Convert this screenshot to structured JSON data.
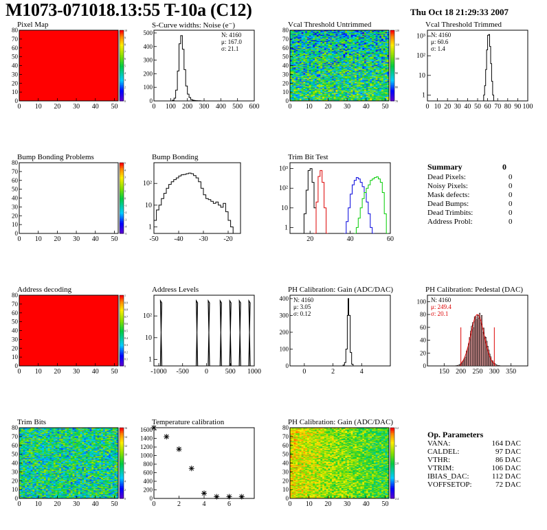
{
  "header": {
    "title": "M1073-071018.13:55 T-10a (C12)",
    "date": "Thu Oct 18 21:29:33 2007"
  },
  "panels": [
    {
      "id": "p1",
      "title": "Pixel Map",
      "type": "heatmap",
      "fill": "uniform",
      "color": "#ff0000",
      "xlim": [
        0,
        52
      ],
      "ylim": [
        0,
        80
      ],
      "xticks": [
        0,
        10,
        20,
        30,
        40,
        50
      ],
      "yticks": [
        0,
        10,
        20,
        30,
        40,
        50,
        60,
        70,
        80
      ],
      "zscale": {
        "ticks": [
          "10",
          "9",
          "8",
          "7",
          "6",
          "5",
          "4",
          "3",
          "2",
          "1",
          "0"
        ]
      }
    },
    {
      "id": "p2",
      "title": "S-Curve widths: Noise (e⁻)",
      "type": "line",
      "xlim": [
        0,
        600
      ],
      "ylim": [
        0,
        520
      ],
      "xticks": [
        0,
        100,
        200,
        300,
        400,
        500,
        600
      ],
      "yticks": [
        0,
        100,
        200,
        300,
        400,
        500
      ],
      "stats": [
        "N: 4160",
        "μ: 167.0",
        "σ: 21.1"
      ],
      "series": [
        {
          "x": [
            100,
            110,
            120,
            130,
            140,
            150,
            160,
            170,
            180,
            190,
            200,
            210,
            220,
            230,
            240,
            250,
            260,
            280,
            300
          ],
          "y": [
            0,
            5,
            20,
            80,
            220,
            420,
            480,
            380,
            230,
            110,
            50,
            25,
            10,
            5,
            3,
            2,
            1,
            0,
            0
          ]
        }
      ]
    },
    {
      "id": "p3",
      "title": "Vcal Threshold Untrimmed",
      "type": "heatmap",
      "fill": "noise-bgy",
      "xlim": [
        0,
        52
      ],
      "ylim": [
        0,
        80
      ],
      "xticks": [
        0,
        10,
        20,
        30,
        40,
        50
      ],
      "yticks": [
        0,
        10,
        20,
        30,
        40,
        50,
        60,
        70,
        80
      ],
      "zscale": {
        "ticks": [
          "120",
          "110",
          "100",
          "90",
          "80",
          "70"
        ]
      }
    },
    {
      "id": "p4",
      "title": "Vcal Threshold Trimmed",
      "type": "line",
      "log": true,
      "xlim": [
        0,
        100
      ],
      "ylim": [
        0.5,
        2000
      ],
      "xticks": [
        0,
        10,
        20,
        30,
        40,
        50,
        60,
        70,
        80,
        90,
        100
      ],
      "yticklabels": [
        "1",
        "10",
        "10²",
        "10³"
      ],
      "stats": [
        "N: 4160",
        "μ: 60.6",
        "σ:  1.4"
      ],
      "series": [
        {
          "x": [
            55,
            56,
            57,
            58,
            59,
            60,
            61,
            62,
            63,
            64,
            65,
            66,
            67
          ],
          "y": [
            0.5,
            1,
            3,
            20,
            200,
            1100,
            1200,
            300,
            40,
            5,
            1,
            0.5,
            0.5
          ]
        }
      ]
    },
    {
      "id": "p5",
      "title": "Bump Bonding Problems",
      "type": "heatmap",
      "fill": "empty",
      "xlim": [
        0,
        52
      ],
      "ylim": [
        0,
        80
      ],
      "xticks": [
        0,
        10,
        20,
        30,
        40,
        50
      ],
      "yticks": [
        0,
        10,
        20,
        30,
        40,
        50,
        60,
        70,
        80
      ],
      "zscale": {
        "ticks": [
          "5",
          "4",
          "3",
          "2",
          "1",
          "0",
          "-1",
          "-2",
          "-3",
          "-4",
          "-5"
        ]
      }
    },
    {
      "id": "p6",
      "title": "Bump Bonding",
      "type": "line",
      "log": true,
      "xlim": [
        -50,
        -15
      ],
      "ylim": [
        0.5,
        900
      ],
      "xticks": [
        -50,
        -40,
        -30,
        -20
      ],
      "yticklabels": [
        "1",
        "10",
        "10²"
      ],
      "series": [
        {
          "x": [
            -50,
            -49,
            -48,
            -47,
            -46,
            -45,
            -44,
            -43,
            -42,
            -41,
            -40,
            -39,
            -38,
            -37,
            -36,
            -35,
            -34,
            -33,
            -32,
            -31,
            -30,
            -29,
            -28,
            -27,
            -26,
            -25,
            -24,
            -23,
            -22,
            -21,
            -20,
            -19,
            -18
          ],
          "y": [
            2,
            6,
            10,
            20,
            35,
            60,
            90,
            120,
            150,
            180,
            220,
            250,
            260,
            280,
            300,
            280,
            230,
            180,
            120,
            60,
            30,
            20,
            18,
            15,
            12,
            14,
            10,
            8,
            12,
            5,
            2,
            1,
            0.5
          ]
        }
      ]
    },
    {
      "id": "p7",
      "title": "Trim Bit Test",
      "type": "line",
      "log": true,
      "xlim": [
        10,
        60
      ],
      "ylim": [
        0.5,
        2000
      ],
      "xticks": [
        20,
        40,
        60
      ],
      "yticklabels": [
        "1",
        "10",
        "10²",
        "10³"
      ],
      "series": [
        {
          "name": "black",
          "color": "#000000",
          "x": [
            16,
            17,
            18,
            19,
            20,
            21,
            22,
            23
          ],
          "y": [
            0.5,
            5,
            80,
            800,
            1000,
            200,
            10,
            0.5
          ]
        },
        {
          "name": "red",
          "color": "#dd0000",
          "x": [
            22,
            23,
            24,
            25,
            26,
            27,
            28
          ],
          "y": [
            0.5,
            20,
            400,
            800,
            200,
            10,
            0.5
          ]
        },
        {
          "name": "blue",
          "color": "#0000dd",
          "x": [
            37,
            38,
            39,
            40,
            41,
            42,
            43,
            44,
            45,
            46,
            47,
            48,
            49,
            50,
            51
          ],
          "y": [
            0.5,
            2,
            10,
            50,
            150,
            250,
            350,
            300,
            200,
            120,
            60,
            20,
            5,
            1,
            0.5
          ]
        },
        {
          "name": "green",
          "color": "#00cc00",
          "x": [
            42,
            43,
            44,
            45,
            46,
            47,
            48,
            49,
            50,
            51,
            52,
            53,
            54,
            55,
            56,
            57,
            58
          ],
          "y": [
            0.5,
            1,
            3,
            10,
            30,
            60,
            100,
            150,
            250,
            300,
            350,
            380,
            300,
            200,
            60,
            5,
            0.5
          ]
        }
      ]
    },
    {
      "id": "p9",
      "title": "Address decoding",
      "type": "heatmap",
      "fill": "uniform",
      "color": "#ff0000",
      "xlim": [
        0,
        52
      ],
      "ylim": [
        0,
        80
      ],
      "xticks": [
        0,
        10,
        20,
        30,
        40,
        50
      ],
      "yticks": [
        0,
        10,
        20,
        30,
        40,
        50,
        60,
        70,
        80
      ],
      "zscale": {
        "ticks": [
          "1",
          "0.9",
          "0.8",
          "0.7",
          "0.6",
          "0.5",
          "0.4",
          "0.3",
          "0.2",
          "0.1",
          "0"
        ]
      }
    },
    {
      "id": "p10",
      "title": "Address Levels",
      "type": "spikes",
      "log": true,
      "xlim": [
        -1100,
        1000
      ],
      "ylim": [
        0.5,
        900
      ],
      "xticks": [
        -1000,
        -500,
        0,
        500,
        1000
      ],
      "yticklabels": [
        "1",
        "10",
        "10²"
      ],
      "spikes": [
        -950,
        -200,
        50,
        300,
        500,
        700,
        900
      ]
    },
    {
      "id": "p11",
      "title": "PH Calibration: Gain (ADC/DAC)",
      "type": "line",
      "xlim": [
        -1,
        6
      ],
      "ylim": [
        0,
        420
      ],
      "xticks": [
        0,
        2,
        4
      ],
      "yticks": [
        0,
        100,
        200,
        300,
        400
      ],
      "stats": [
        "N: 4160",
        "μ: 3.05",
        "σ: 0.12"
      ],
      "series": [
        {
          "x": [
            2.6,
            2.7,
            2.8,
            2.9,
            3.0,
            3.05,
            3.1,
            3.2,
            3.3,
            3.4
          ],
          "y": [
            0,
            5,
            20,
            100,
            300,
            400,
            300,
            80,
            10,
            0
          ]
        }
      ]
    },
    {
      "id": "p12",
      "title": "PH Calibration: Pedestal (DAC)",
      "type": "hist-fit",
      "xlim": [
        100,
        400
      ],
      "ylim": [
        0,
        110
      ],
      "xticks": [
        150,
        200,
        250,
        300,
        350
      ],
      "yticks": [
        0,
        20,
        40,
        60,
        80,
        100
      ],
      "stats": [
        "N: 4160",
        "μ: 249.4",
        "σ: 20.1"
      ],
      "stats_colors": [
        "#000000",
        "#dd0000",
        "#dd0000"
      ],
      "fit": {
        "mean": 249.4,
        "sigma": 20.1,
        "amp": 80,
        "range": [
          200,
          300
        ]
      }
    },
    {
      "id": "p13",
      "title": "Trim Bits",
      "type": "heatmap",
      "fill": "noise-gyb",
      "xlim": [
        0,
        52
      ],
      "ylim": [
        0,
        80
      ],
      "xticks": [
        0,
        10,
        20,
        30,
        40,
        50
      ],
      "yticks": [
        0,
        10,
        20,
        30,
        40,
        50,
        60,
        70,
        80
      ],
      "zscale": {
        "ticks": [
          "16",
          "14",
          "12",
          "10",
          "8",
          "6",
          "4",
          "2",
          "0"
        ]
      }
    },
    {
      "id": "p14",
      "title": "Temperature calibration",
      "type": "scatter",
      "xlim": [
        0,
        8
      ],
      "ylim": [
        0,
        1650
      ],
      "xticks": [
        0,
        2,
        4,
        6
      ],
      "yticks": [
        0,
        200,
        400,
        600,
        800,
        1000,
        1200,
        1400,
        1600
      ],
      "series": [
        {
          "x": [
            0,
            1,
            2,
            3,
            4,
            5,
            6,
            7
          ],
          "y": [
            1650,
            1440,
            1150,
            700,
            120,
            40,
            40,
            40
          ]
        }
      ]
    },
    {
      "id": "p15",
      "title": "PH Calibration: Gain (ADC/DAC)",
      "type": "heatmap",
      "fill": "noise-ryg",
      "xlim": [
        0,
        52
      ],
      "ylim": [
        0,
        80
      ],
      "xticks": [
        0,
        10,
        20,
        30,
        40,
        50
      ],
      "yticks": [
        0,
        10,
        20,
        30,
        40,
        50,
        60,
        70,
        80
      ],
      "zscale": {
        "ticks": [
          "3.2",
          "3",
          "2.8",
          "2.6",
          "2.4"
        ]
      }
    }
  ],
  "summary": {
    "title": "Summary",
    "total": "0",
    "rows": [
      {
        "label": "Dead Pixels:",
        "value": "0"
      },
      {
        "label": "Noisy Pixels:",
        "value": "0"
      },
      {
        "label": "Mask defects:",
        "value": "0"
      },
      {
        "label": "Dead Bumps:",
        "value": "0"
      },
      {
        "label": "Dead Trimbits:",
        "value": "0"
      },
      {
        "label": "Address Probl:",
        "value": "0"
      }
    ]
  },
  "op_parameters": {
    "title": "Op. Parameters",
    "rows": [
      {
        "label": "VANA:",
        "value": "164 DAC"
      },
      {
        "label": "CALDEL:",
        "value": "97 DAC"
      },
      {
        "label": "VTHR:",
        "value": "86 DAC"
      },
      {
        "label": "VTRIM:",
        "value": "106 DAC"
      },
      {
        "label": "IBIAS_DAC:",
        "value": "112 DAC"
      },
      {
        "label": "VOFFSETOP:",
        "value": "72 DAC"
      }
    ]
  },
  "chart_data": [
    {
      "type": "heatmap",
      "title": "Pixel Map",
      "x_range": [
        0,
        52
      ],
      "y_range": [
        0,
        80
      ],
      "z_range": [
        0,
        10
      ],
      "uniform_value": 10
    },
    {
      "type": "line",
      "title": "S-Curve widths: Noise (e⁻)",
      "x": [
        100,
        150,
        160,
        170,
        200,
        250,
        300
      ],
      "values": [
        0,
        420,
        480,
        380,
        50,
        2,
        0
      ],
      "stats": {
        "N": 4160,
        "mean": 167.0,
        "sigma": 21.1
      }
    },
    {
      "type": "heatmap",
      "title": "Vcal Threshold Untrimmed",
      "x_range": [
        0,
        52
      ],
      "y_range": [
        0,
        80
      ],
      "z_range": [
        70,
        120
      ]
    },
    {
      "type": "line",
      "title": "Vcal Threshold Trimmed",
      "log_y": true,
      "stats": {
        "N": 4160,
        "mean": 60.6,
        "sigma": 1.4
      }
    },
    {
      "type": "heatmap",
      "title": "Bump Bonding Problems",
      "x_range": [
        0,
        52
      ],
      "y_range": [
        0,
        80
      ],
      "z_range": [
        -5,
        5
      ],
      "empty": true
    },
    {
      "type": "line",
      "title": "Bump Bonding",
      "log_y": true,
      "x_range": [
        -50,
        -15
      ]
    },
    {
      "type": "line",
      "title": "Trim Bit Test",
      "log_y": true,
      "series": [
        {
          "name": "black",
          "peak_x": 20
        },
        {
          "name": "red",
          "peak_x": 25
        },
        {
          "name": "blue",
          "peak_x": 43
        },
        {
          "name": "green",
          "peak_x": 53
        }
      ]
    },
    {
      "type": "heatmap",
      "title": "Address decoding",
      "x_range": [
        0,
        52
      ],
      "y_range": [
        0,
        80
      ],
      "z_range": [
        0,
        1
      ],
      "uniform_value": 1
    },
    {
      "type": "line",
      "title": "Address Levels",
      "log_y": true,
      "spike_x": [
        -950,
        -200,
        50,
        300,
        500,
        700,
        900
      ]
    },
    {
      "type": "line",
      "title": "PH Calibration: Gain (ADC/DAC)",
      "stats": {
        "N": 4160,
        "mean": 3.05,
        "sigma": 0.12
      }
    },
    {
      "type": "line",
      "title": "PH Calibration: Pedestal (DAC)",
      "stats": {
        "N": 4160,
        "mean": 249.4,
        "sigma": 20.1
      }
    },
    {
      "type": "heatmap",
      "title": "Trim Bits",
      "x_range": [
        0,
        52
      ],
      "y_range": [
        0,
        80
      ],
      "z_range": [
        0,
        16
      ]
    },
    {
      "type": "scatter",
      "title": "Temperature calibration",
      "x": [
        0,
        1,
        2,
        3,
        4,
        5,
        6,
        7
      ],
      "y": [
        1650,
        1440,
        1150,
        700,
        120,
        40,
        40,
        40
      ]
    },
    {
      "type": "heatmap",
      "title": "PH Calibration: Gain (ADC/DAC)",
      "x_range": [
        0,
        52
      ],
      "y_range": [
        0,
        80
      ],
      "z_range": [
        2.4,
        3.2
      ]
    }
  ]
}
